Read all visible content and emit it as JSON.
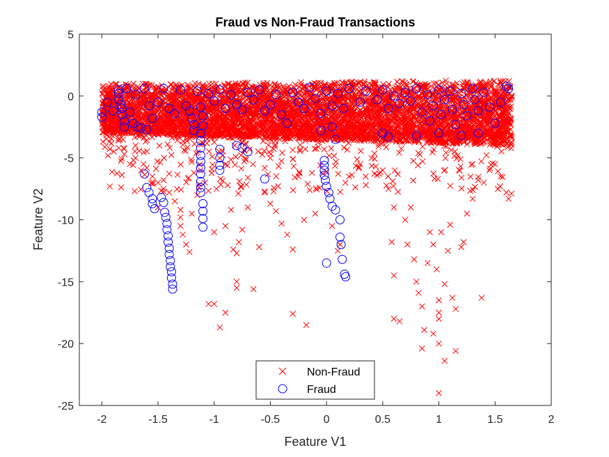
{
  "chart_data": {
    "type": "scatter",
    "title": "Fraud vs Non-Fraud Transactions",
    "xlabel": "Feature V1",
    "ylabel": "Feature V2",
    "xlim": [
      -2.2,
      2
    ],
    "ylim": [
      -25,
      5
    ],
    "xticks": [
      -2,
      -1.5,
      -1,
      -0.5,
      0,
      0.5,
      1,
      1.5,
      2
    ],
    "xtick_labels": [
      "-2",
      "-1.5",
      "-1",
      "-0.5",
      "0",
      "0.5",
      "1",
      "1.5",
      "2"
    ],
    "yticks": [
      -25,
      -20,
      -15,
      -10,
      -5,
      0,
      5
    ],
    "ytick_labels": [
      "-25",
      "-20",
      "-15",
      "-10",
      "-5",
      "0",
      "5"
    ],
    "grid": false,
    "legend_position": "bottom-center",
    "series": [
      {
        "name": "Non-Fraud",
        "marker": "x",
        "color": "#ff0000",
        "dense_band": {
          "x": [
            -2.0,
            1.65
          ],
          "y_top": [
            1.0,
            1.3
          ],
          "y_bottom": [
            -3.0,
            -4.0
          ]
        },
        "points": [
          [
            -1.85,
            -4.2
          ],
          [
            -1.8,
            -4.7
          ],
          [
            -1.75,
            -5.5
          ],
          [
            -1.7,
            -5.0
          ],
          [
            -1.65,
            -6.0
          ],
          [
            -1.6,
            -5.8
          ],
          [
            -1.55,
            -6.5
          ],
          [
            -1.5,
            -7.0
          ],
          [
            -1.45,
            -7.5
          ],
          [
            -1.4,
            -7.8
          ],
          [
            -1.35,
            -8.5
          ],
          [
            -1.3,
            -9.2
          ],
          [
            -1.3,
            -10.5
          ],
          [
            -1.28,
            -11.2
          ],
          [
            -1.25,
            -12.0
          ],
          [
            -1.22,
            -12.6
          ],
          [
            -1.3,
            -9.8
          ],
          [
            -1.2,
            -9.5
          ],
          [
            -1.18,
            -6.2
          ],
          [
            -1.15,
            -8.0
          ],
          [
            -1.05,
            -16.8
          ],
          [
            -1.0,
            -16.8
          ],
          [
            -1.0,
            -11.0
          ],
          [
            -0.98,
            -7.5
          ],
          [
            -0.95,
            -18.7
          ],
          [
            -0.9,
            -17.5
          ],
          [
            -0.9,
            -10.5
          ],
          [
            -0.85,
            -9.2
          ],
          [
            -0.83,
            -12.4
          ],
          [
            -0.8,
            -15.0
          ],
          [
            -0.8,
            -15.5
          ],
          [
            -0.8,
            -12.7
          ],
          [
            -0.78,
            -11.8
          ],
          [
            -0.75,
            -10.8
          ],
          [
            -0.7,
            -9.0
          ],
          [
            -0.65,
            -15.6
          ],
          [
            -0.6,
            -12.2
          ],
          [
            -0.55,
            -7.8
          ],
          [
            -0.5,
            -8.7
          ],
          [
            -0.45,
            -9.3
          ],
          [
            -0.4,
            -10.3
          ],
          [
            -0.35,
            -11.2
          ],
          [
            -0.3,
            -12.4
          ],
          [
            -0.3,
            -17.6
          ],
          [
            -0.25,
            -6.5
          ],
          [
            -0.2,
            -10.0
          ],
          [
            -0.18,
            -18.5
          ],
          [
            -0.15,
            -7.6
          ],
          [
            -0.1,
            -9.5
          ],
          [
            0.05,
            -10.5
          ],
          [
            0.1,
            -12.5
          ],
          [
            0.12,
            -12.0
          ],
          [
            0.2,
            -6.5
          ],
          [
            0.3,
            -5.5
          ],
          [
            0.4,
            -5.0
          ],
          [
            0.5,
            -6.0
          ],
          [
            0.55,
            -7.5
          ],
          [
            0.6,
            -9.0
          ],
          [
            0.58,
            -11.8
          ],
          [
            0.6,
            -14.5
          ],
          [
            0.6,
            -18.0
          ],
          [
            0.65,
            -18.2
          ],
          [
            0.7,
            -10.0
          ],
          [
            0.72,
            -12.0
          ],
          [
            0.75,
            -9.0
          ],
          [
            0.78,
            -13.2
          ],
          [
            0.8,
            -15.0
          ],
          [
            0.82,
            -15.9
          ],
          [
            0.85,
            -17.0
          ],
          [
            0.85,
            -20.4
          ],
          [
            0.87,
            -18.9
          ],
          [
            0.9,
            -13.5
          ],
          [
            0.92,
            -11.0
          ],
          [
            0.95,
            -12.0
          ],
          [
            0.95,
            -19.2
          ],
          [
            0.98,
            -14.0
          ],
          [
            1.0,
            -16.5
          ],
          [
            1.0,
            -17.5
          ],
          [
            1.0,
            -18.0
          ],
          [
            1.0,
            -20.0
          ],
          [
            1.0,
            -24.0
          ],
          [
            1.02,
            -11.0
          ],
          [
            1.05,
            -15.2
          ],
          [
            1.05,
            -21.4
          ],
          [
            1.08,
            -12.5
          ],
          [
            1.1,
            -10.4
          ],
          [
            1.12,
            -16.3
          ],
          [
            1.15,
            -20.6
          ],
          [
            1.15,
            -17.2
          ],
          [
            1.2,
            -12.2
          ],
          [
            1.22,
            -11.8
          ],
          [
            1.25,
            -9.5
          ],
          [
            1.3,
            -8.3
          ],
          [
            1.35,
            -6.8
          ],
          [
            1.38,
            -16.3
          ],
          [
            1.4,
            -7.0
          ],
          [
            1.45,
            -6.0
          ],
          [
            1.5,
            -5.5
          ],
          [
            1.55,
            -6.5
          ],
          [
            1.6,
            -7.8
          ],
          [
            1.62,
            -8.3
          ],
          [
            -1.5,
            -9.0
          ],
          [
            -1.45,
            -6.8
          ],
          [
            -1.7,
            -4.0
          ],
          [
            -0.7,
            -6.6
          ],
          [
            0.0,
            -6.1
          ],
          [
            0.35,
            -7.2
          ],
          [
            1.3,
            -5.5
          ]
        ]
      },
      {
        "name": "Fraud",
        "marker": "o",
        "color": "#0000ff",
        "points": [
          [
            -2.0,
            -1.3
          ],
          [
            -2.0,
            -1.7
          ],
          [
            -1.95,
            -0.5
          ],
          [
            -1.9,
            -1.2
          ],
          [
            -1.85,
            0.5
          ],
          [
            -1.85,
            0.2
          ],
          [
            -1.85,
            -0.3
          ],
          [
            -1.83,
            -0.7
          ],
          [
            -1.82,
            -1.0
          ],
          [
            -1.82,
            -1.5
          ],
          [
            -1.8,
            -2.0
          ],
          [
            -1.8,
            -2.5
          ],
          [
            -1.78,
            0.6
          ],
          [
            -1.75,
            -1.3
          ],
          [
            -1.72,
            -2.2
          ],
          [
            -1.7,
            0.1
          ],
          [
            -1.68,
            -2.5
          ],
          [
            -1.65,
            -2.6
          ],
          [
            -1.62,
            0.6
          ],
          [
            -1.6,
            -2.7
          ],
          [
            -1.58,
            -0.8
          ],
          [
            -1.55,
            -1.8
          ],
          [
            -1.5,
            -0.5
          ],
          [
            -1.45,
            0.6
          ],
          [
            -1.4,
            -1.0
          ],
          [
            -1.35,
            -1.4
          ],
          [
            -1.3,
            0.5
          ],
          [
            -1.25,
            -0.8
          ],
          [
            -1.22,
            -1.2
          ],
          [
            -1.2,
            -1.8
          ],
          [
            -1.18,
            -2.3
          ],
          [
            -1.18,
            -2.8
          ],
          [
            -1.15,
            0.4
          ],
          [
            -1.12,
            -0.9
          ],
          [
            -1.1,
            -1.6
          ],
          [
            -1.1,
            -2.4
          ],
          [
            -1.05,
            0.2
          ],
          [
            -1.0,
            -0.4
          ],
          [
            -0.95,
            0.5
          ],
          [
            -0.9,
            -1.0
          ],
          [
            -0.85,
            0.1
          ],
          [
            -0.8,
            -0.7
          ],
          [
            -0.75,
            -1.1
          ],
          [
            -0.7,
            0.3
          ],
          [
            -0.65,
            -0.3
          ],
          [
            -0.6,
            0.5
          ],
          [
            -0.55,
            -1.2
          ],
          [
            -0.5,
            -0.7
          ],
          [
            -0.45,
            0.1
          ],
          [
            -0.4,
            -1.5
          ],
          [
            -0.35,
            -2.2
          ],
          [
            -0.3,
            0.3
          ],
          [
            -0.25,
            -0.5
          ],
          [
            -0.2,
            -1.0
          ],
          [
            -0.15,
            0.7
          ],
          [
            -0.1,
            -0.2
          ],
          [
            -0.05,
            -1.4
          ],
          [
            0.0,
            0.4
          ],
          [
            0.05,
            -0.8
          ],
          [
            0.1,
            0.2
          ],
          [
            0.15,
            -1.0
          ],
          [
            0.2,
            0.6
          ],
          [
            0.3,
            -0.5
          ],
          [
            0.35,
            0.4
          ],
          [
            0.45,
            -0.3
          ],
          [
            0.5,
            0.5
          ],
          [
            0.55,
            -1.0
          ],
          [
            0.6,
            0.0
          ],
          [
            0.65,
            -0.6
          ],
          [
            0.7,
            0.3
          ],
          [
            0.75,
            -0.4
          ],
          [
            0.8,
            0.6
          ],
          [
            0.85,
            -1.3
          ],
          [
            0.9,
            0.1
          ],
          [
            0.92,
            -2.0
          ],
          [
            0.95,
            -0.8
          ],
          [
            1.0,
            0.5
          ],
          [
            1.02,
            -1.5
          ],
          [
            1.05,
            -0.3
          ],
          [
            1.1,
            0.4
          ],
          [
            1.12,
            -1.1
          ],
          [
            1.15,
            -2.3
          ],
          [
            1.2,
            0.2
          ],
          [
            1.22,
            -0.7
          ],
          [
            1.25,
            -1.6
          ],
          [
            1.3,
            0.6
          ],
          [
            1.32,
            -0.3
          ],
          [
            1.35,
            -1.2
          ],
          [
            1.4,
            0.3
          ],
          [
            1.45,
            -0.9
          ],
          [
            1.5,
            -2.2
          ],
          [
            1.55,
            -0.5
          ],
          [
            1.6,
            0.8
          ],
          [
            1.62,
            0.6
          ],
          [
            0.5,
            -3.0
          ],
          [
            0.55,
            -3.3
          ],
          [
            0.8,
            -3.2
          ],
          [
            1.0,
            -3.0
          ],
          [
            1.2,
            -3.2
          ],
          [
            1.35,
            -3.0
          ],
          [
            -1.62,
            -6.3
          ],
          [
            -1.6,
            -7.4
          ],
          [
            -1.58,
            -7.8
          ],
          [
            -1.55,
            -8.3
          ],
          [
            -1.55,
            -8.7
          ],
          [
            -1.53,
            -9.1
          ],
          [
            -1.47,
            -8.2
          ],
          [
            -1.45,
            -8.6
          ],
          [
            -1.44,
            -9.4
          ],
          [
            -1.43,
            -9.8
          ],
          [
            -1.42,
            -10.3
          ],
          [
            -1.42,
            -10.8
          ],
          [
            -1.41,
            -11.3
          ],
          [
            -1.41,
            -11.8
          ],
          [
            -1.4,
            -12.3
          ],
          [
            -1.4,
            -12.8
          ],
          [
            -1.39,
            -13.3
          ],
          [
            -1.39,
            -13.8
          ],
          [
            -1.38,
            -14.2
          ],
          [
            -1.38,
            -14.7
          ],
          [
            -1.37,
            -15.2
          ],
          [
            -1.37,
            -15.6
          ],
          [
            -1.12,
            -3.0
          ],
          [
            -1.12,
            -3.6
          ],
          [
            -1.12,
            -4.2
          ],
          [
            -1.12,
            -4.8
          ],
          [
            -1.12,
            -5.3
          ],
          [
            -1.12,
            -5.8
          ],
          [
            -1.12,
            -6.3
          ],
          [
            -1.12,
            -6.9
          ],
          [
            -1.12,
            -7.4
          ],
          [
            -1.12,
            -7.8
          ],
          [
            -1.1,
            -8.7
          ],
          [
            -1.1,
            -9.3
          ],
          [
            -1.1,
            -9.9
          ],
          [
            -1.1,
            -10.6
          ],
          [
            -0.95,
            -4.3
          ],
          [
            -0.95,
            -5.0
          ],
          [
            -0.95,
            -5.6
          ],
          [
            -0.95,
            -6.0
          ],
          [
            -0.8,
            -4.0
          ],
          [
            -0.75,
            -4.2
          ],
          [
            -0.7,
            -4.5
          ],
          [
            -0.55,
            -6.7
          ],
          [
            -0.02,
            -5.2
          ],
          [
            -0.02,
            -5.6
          ],
          [
            -0.02,
            -6.0
          ],
          [
            -0.02,
            -6.4
          ],
          [
            -0.01,
            -6.8
          ],
          [
            0.0,
            -7.3
          ],
          [
            0.02,
            -7.8
          ],
          [
            0.03,
            -8.3
          ],
          [
            0.05,
            -8.9
          ],
          [
            0.08,
            -9.2
          ],
          [
            0.12,
            -10.0
          ],
          [
            0.12,
            -11.4
          ],
          [
            0.13,
            -12.0
          ],
          [
            0.14,
            -13.2
          ],
          [
            0.16,
            -14.4
          ],
          [
            0.17,
            -14.6
          ],
          [
            0.0,
            -13.5
          ],
          [
            0.08,
            -3.5
          ],
          [
            0.05,
            -2.5
          ],
          [
            -0.05,
            -2.8
          ]
        ]
      }
    ]
  }
}
